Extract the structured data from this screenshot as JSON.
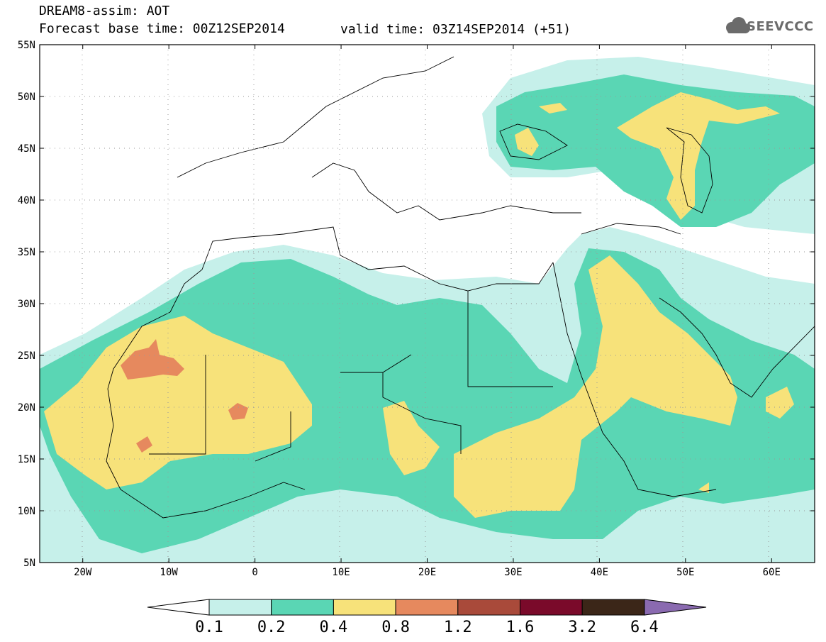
{
  "header": {
    "line1": "DREAM8-assim: AOT",
    "line2": "Forecast base time: 00Z12SEP2014",
    "valid": "valid time: 03Z14SEP2014 (+51)"
  },
  "logo": {
    "text": "SEEVCCC",
    "color": "#6b6b6b"
  },
  "map": {
    "lon_range": [
      -25,
      65
    ],
    "lat_range": [
      5,
      55
    ],
    "lat_ticks": [
      "5N",
      "10N",
      "15N",
      "20N",
      "25N",
      "30N",
      "35N",
      "40N",
      "45N",
      "50N",
      "55N"
    ],
    "lon_ticks": [
      "20W",
      "10W",
      "0",
      "10E",
      "20E",
      "30E",
      "40E",
      "50E",
      "60E"
    ]
  },
  "colorbar": {
    "labels": [
      "0.1",
      "0.2",
      "0.4",
      "0.8",
      "1.2",
      "1.6",
      "3.2",
      "6.4"
    ],
    "colors": [
      "#c6f0ea",
      "#5ad6b4",
      "#f7e27a",
      "#e6895e",
      "#a94a3a",
      "#7a0a2a",
      "#3b2618",
      "#8a6ab0"
    ],
    "below_color": "#ffffff"
  }
}
